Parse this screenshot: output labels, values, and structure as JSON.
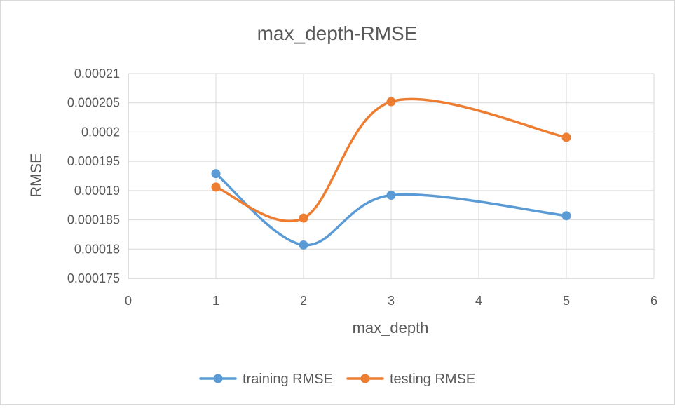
{
  "chart_data": {
    "type": "scatter",
    "title": "max_depth-RMSE",
    "xlabel": "max_depth",
    "ylabel": "RMSE",
    "xlim": [
      0,
      6
    ],
    "ylim": [
      0.000175,
      0.00021
    ],
    "x_ticks": [
      0,
      1,
      2,
      3,
      4,
      5,
      6
    ],
    "y_ticks": [
      0.000175,
      0.00018,
      0.000185,
      0.00019,
      0.000195,
      0.0002,
      0.000205,
      0.00021
    ],
    "x_tick_labels": [
      "0",
      "1",
      "2",
      "3",
      "4",
      "5",
      "6"
    ],
    "y_tick_labels": [
      "0.000175",
      "0.00018",
      "0.000185",
      "0.00019",
      "0.000195",
      "0.0002",
      "0.000205",
      "0.00021"
    ],
    "grid": true,
    "smooth_lines": true,
    "legend_position": "bottom",
    "x": [
      1,
      2,
      3,
      5
    ],
    "series": [
      {
        "name": "training RMSE",
        "color": "#5b9bd5",
        "values": [
          0.0001929,
          0.0001807,
          0.0001892,
          0.0001857
        ]
      },
      {
        "name": "testing RMSE",
        "color": "#ed7d31",
        "values": [
          0.0001906,
          0.0001853,
          0.0002052,
          0.0001991
        ]
      }
    ]
  }
}
